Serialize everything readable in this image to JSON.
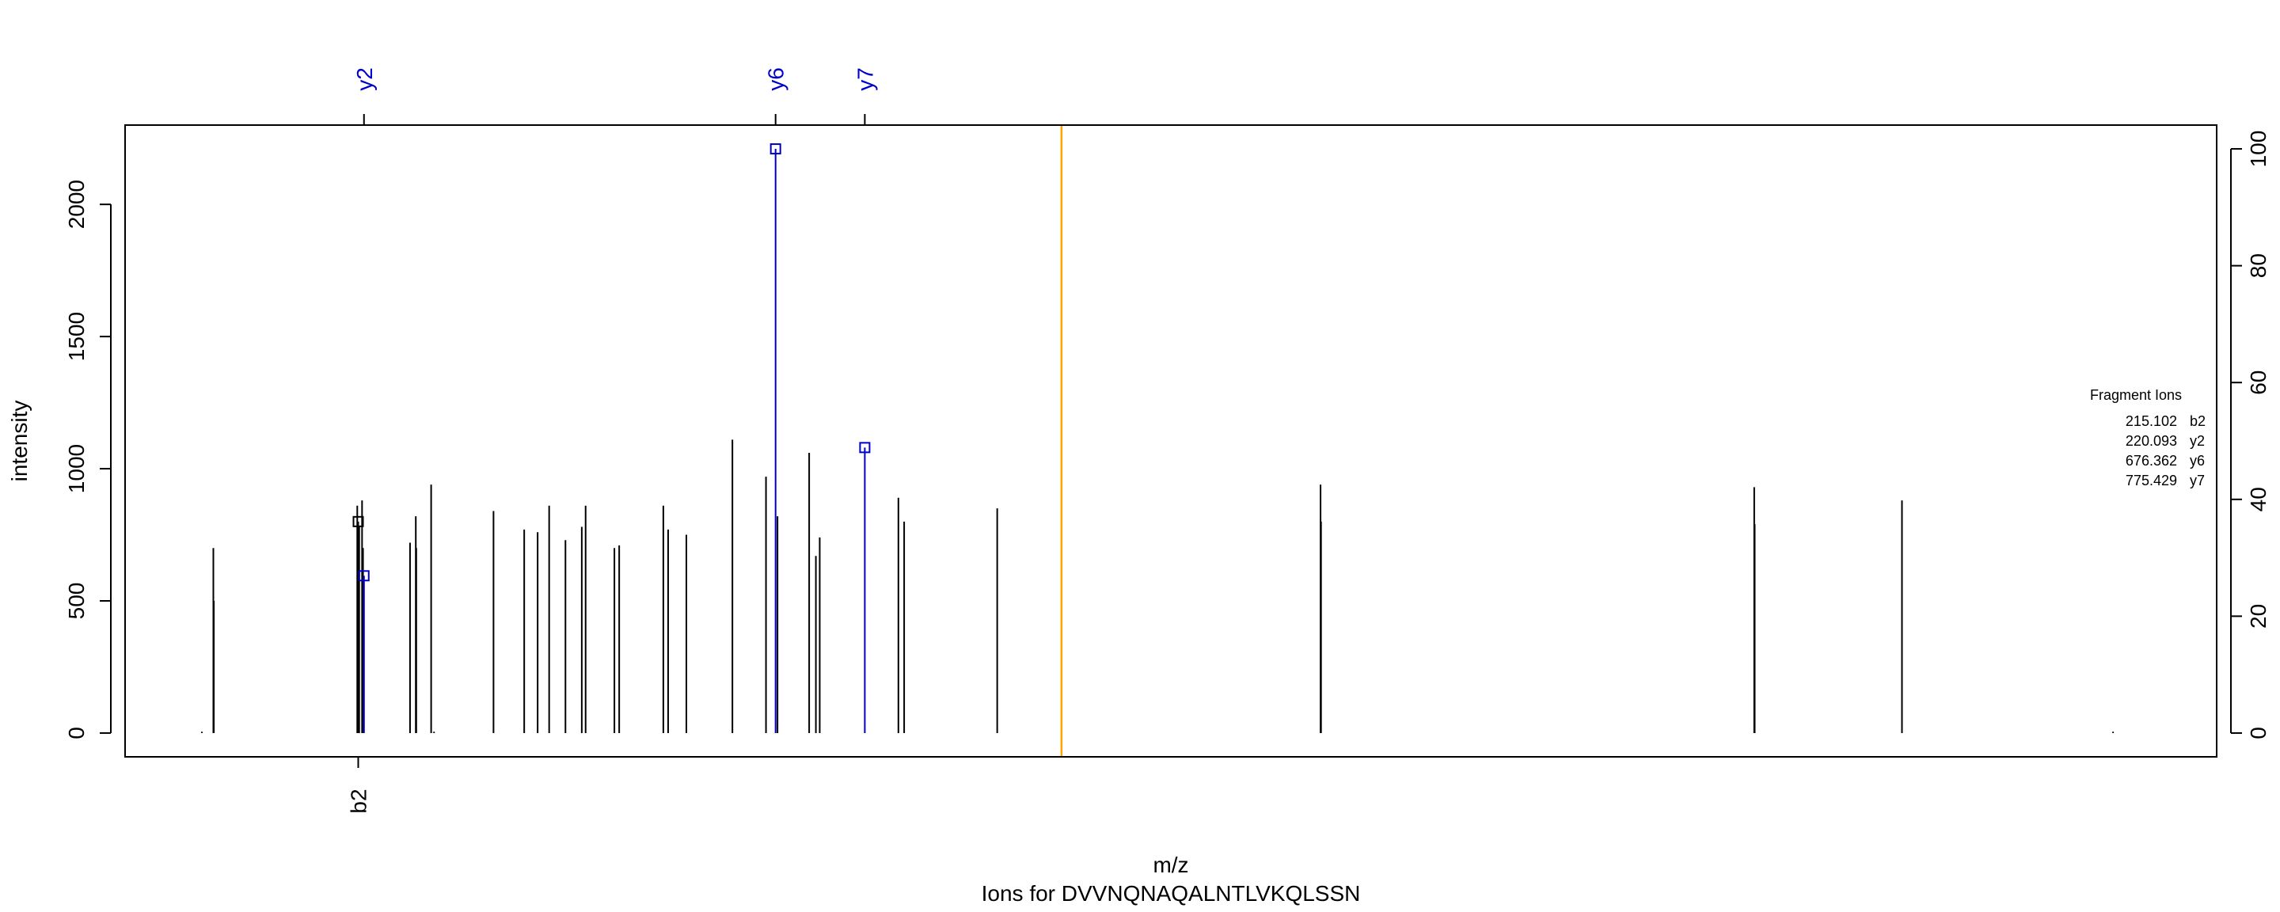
{
  "chart_data": {
    "type": "bar",
    "title": "Ions for DVVNQNAQALNTLVKQLSSN",
    "xlabel": "m/z",
    "ylabel": "intensity",
    "x_axis_shown": false,
    "ylim": [
      -90,
      2300
    ],
    "y_ticks": [
      0,
      500,
      1000,
      1500,
      2000
    ],
    "y2_ticks": [
      0,
      20,
      40,
      60,
      80,
      100
    ],
    "y2_max_intensity": 2210,
    "xlim": [
      -40,
      2140
    ],
    "precursor_line_x": 936,
    "precursor_line_color": "#FFA500",
    "peaks": [
      {
        "x": 40,
        "y": 5
      },
      {
        "x": 52,
        "y": 700
      },
      {
        "x": 52.5,
        "y": 500
      },
      {
        "x": 202,
        "y": 860
      },
      {
        "x": 203,
        "y": 760
      },
      {
        "x": 204,
        "y": 780
      },
      {
        "x": 207,
        "y": 880
      },
      {
        "x": 208,
        "y": 700
      },
      {
        "x": 257,
        "y": 720
      },
      {
        "x": 263,
        "y": 820
      },
      {
        "x": 263.5,
        "y": 700
      },
      {
        "x": 279,
        "y": 940
      },
      {
        "x": 282,
        "y": 5
      },
      {
        "x": 344,
        "y": 840
      },
      {
        "x": 376,
        "y": 770
      },
      {
        "x": 390,
        "y": 760
      },
      {
        "x": 402,
        "y": 860
      },
      {
        "x": 419,
        "y": 730
      },
      {
        "x": 436,
        "y": 780
      },
      {
        "x": 440,
        "y": 860
      },
      {
        "x": 470,
        "y": 700
      },
      {
        "x": 475,
        "y": 710
      },
      {
        "x": 521,
        "y": 860
      },
      {
        "x": 526,
        "y": 770
      },
      {
        "x": 545,
        "y": 750
      },
      {
        "x": 593,
        "y": 1110
      },
      {
        "x": 628,
        "y": 970
      },
      {
        "x": 640,
        "y": 820
      },
      {
        "x": 673,
        "y": 1060
      },
      {
        "x": 680,
        "y": 670
      },
      {
        "x": 684,
        "y": 740
      },
      {
        "x": 766,
        "y": 890
      },
      {
        "x": 772,
        "y": 800
      },
      {
        "x": 869,
        "y": 850
      },
      {
        "x": 1206,
        "y": 940
      },
      {
        "x": 1206.5,
        "y": 800
      },
      {
        "x": 1658,
        "y": 930
      },
      {
        "x": 1658.5,
        "y": 790
      },
      {
        "x": 1812,
        "y": 880
      },
      {
        "x": 2032,
        "y": 5
      }
    ],
    "fragment_ions": [
      {
        "label": "b2",
        "mz": "215.102",
        "x": 203,
        "y": 800,
        "color": "#000000",
        "side": "bottom"
      },
      {
        "label": "y2",
        "mz": "220.093",
        "x": 209,
        "y": 595,
        "color": "#0000CC",
        "side": "top"
      },
      {
        "label": "y6",
        "mz": "676.362",
        "x": 638,
        "y": 2210,
        "color": "#0000CC",
        "side": "top"
      },
      {
        "label": "y7",
        "mz": "775.429",
        "x": 731,
        "y": 1080,
        "color": "#0000CC",
        "side": "top"
      }
    ],
    "legend": {
      "title": "Fragment Ions",
      "position": "right",
      "rows": [
        {
          "mz": "215.102",
          "ion": "b2"
        },
        {
          "mz": "220.093",
          "ion": "y2"
        },
        {
          "mz": "676.362",
          "ion": "y6"
        },
        {
          "mz": "775.429",
          "ion": "y7"
        }
      ]
    }
  }
}
